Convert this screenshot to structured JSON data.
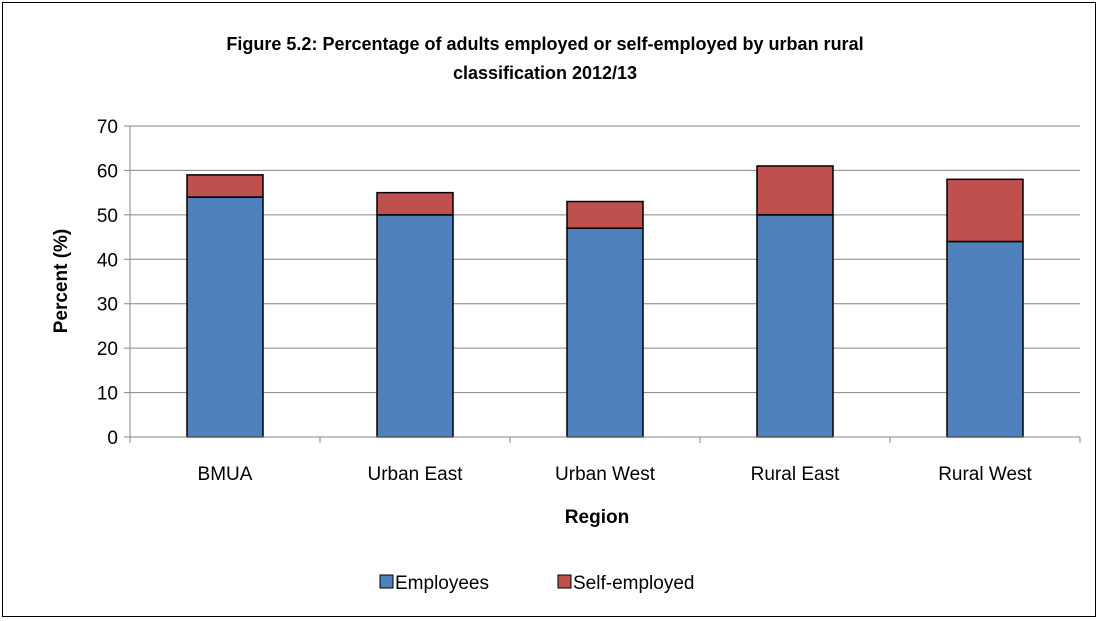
{
  "chart_data": {
    "type": "bar",
    "stacked": true,
    "title": "Figure 5.2:  Percentage of adults employed or self-employed by urban rural classification  2012/13",
    "title_lines": [
      "Figure 5.2:  Percentage of adults employed or self-employed by urban rural",
      "classification  2012/13"
    ],
    "xlabel": "Region",
    "ylabel": "Percent (%)",
    "ylim": [
      0,
      70
    ],
    "yticks": [
      "0",
      "10",
      "20",
      "30",
      "40",
      "50",
      "60",
      "70"
    ],
    "grid": true,
    "legend_position": "bottom",
    "categories": [
      "BMUA",
      "Urban East",
      "Urban West",
      "Rural East",
      "Rural West"
    ],
    "series": [
      {
        "name": "Employees",
        "color": "#4f81bd",
        "values": [
          54,
          50,
          47,
          50,
          44
        ]
      },
      {
        "name": "Self-employed",
        "color": "#c0504d",
        "values": [
          5,
          5,
          6,
          11,
          14
        ]
      }
    ]
  }
}
